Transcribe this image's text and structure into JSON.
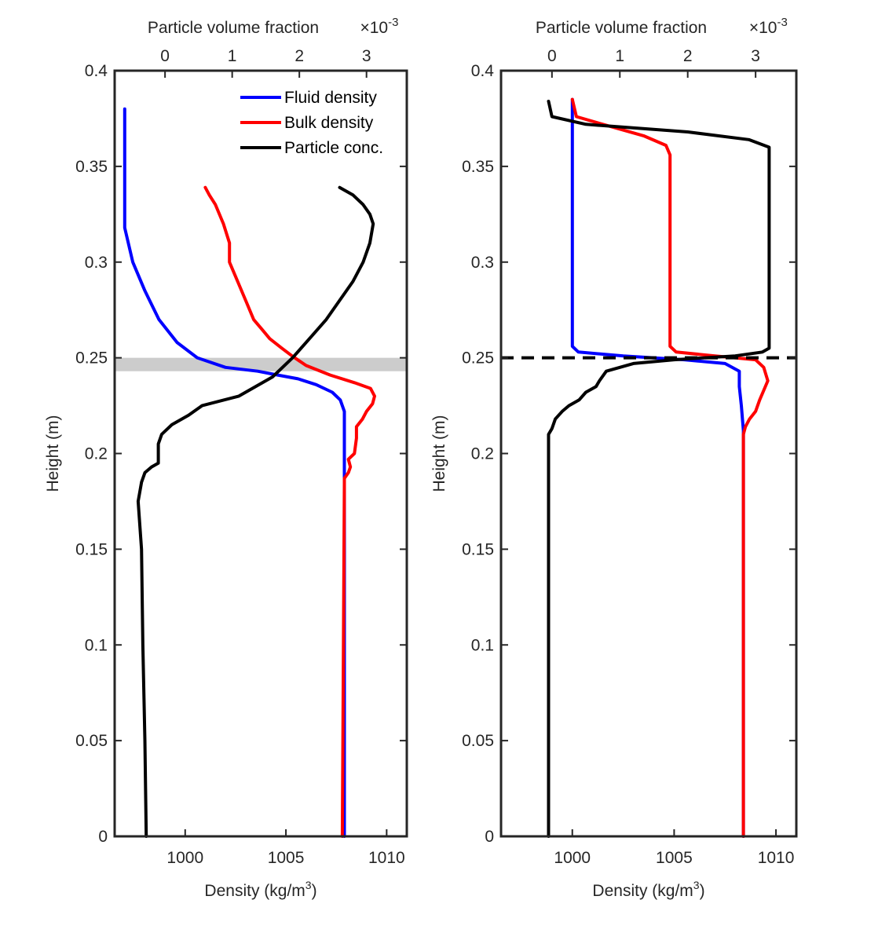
{
  "chart_data": [
    {
      "type": "line",
      "panel": "left",
      "xlabel_bottom": "Density (kg/m",
      "xlabel_bottom_sup": "3",
      "xlabel_bottom_end": ")",
      "xlabel_top": "Particle volume fraction",
      "xlabel_top_multiplier": "×10",
      "xlabel_top_multiplier_exp": "-3",
      "ylabel": "Height (m)",
      "xlim_bottom": [
        996.5,
        1011
      ],
      "xlim_top": [
        -0.75,
        3.6
      ],
      "ylim": [
        0,
        0.4
      ],
      "xticks_bottom": [
        "1000",
        "1005",
        "1010"
      ],
      "xticks_top": [
        "0",
        "1",
        "2",
        "3"
      ],
      "yticks": [
        "0",
        "0.05",
        "0.1",
        "0.15",
        "0.2",
        "0.25",
        "0.3",
        "0.35",
        "0.4"
      ],
      "band": {
        "y0": 0.243,
        "y1": 0.25,
        "color": "#cccccc"
      },
      "legend": {
        "location": "top-right",
        "entries": [
          {
            "label": "Fluid density",
            "color": "#0000ff"
          },
          {
            "label": "Bulk density",
            "color": "#ff0000"
          },
          {
            "label": "Particle conc.",
            "color": "#000000"
          }
        ]
      },
      "series": [
        {
          "name": "Fluid density",
          "axis": "bottom",
          "color": "#0000ff",
          "points": [
            [
              997,
              0.38
            ],
            [
              997,
              0.318
            ],
            [
              997.4,
              0.3
            ],
            [
              998,
              0.285
            ],
            [
              998.7,
              0.27
            ],
            [
              999.6,
              0.258
            ],
            [
              1000.6,
              0.25
            ],
            [
              1002,
              0.245
            ],
            [
              1003.6,
              0.243
            ],
            [
              1004.6,
              0.241
            ],
            [
              1005.6,
              0.239
            ],
            [
              1006.5,
              0.236
            ],
            [
              1007.3,
              0.232
            ],
            [
              1007.7,
              0.228
            ],
            [
              1007.9,
              0.222
            ],
            [
              1007.9,
              0.218
            ],
            [
              1007.9,
              0
            ]
          ]
        },
        {
          "name": "Bulk density",
          "axis": "bottom",
          "color": "#ff0000",
          "points": [
            [
              1001,
              0.339
            ],
            [
              1001.2,
              0.335
            ],
            [
              1001.5,
              0.33
            ],
            [
              1001.9,
              0.32
            ],
            [
              1002.2,
              0.31
            ],
            [
              1002.2,
              0.3
            ],
            [
              1002.6,
              0.29
            ],
            [
              1003,
              0.28
            ],
            [
              1003.4,
              0.27
            ],
            [
              1003.8,
              0.265
            ],
            [
              1004.2,
              0.26
            ],
            [
              1004.8,
              0.255
            ],
            [
              1005.3,
              0.251
            ],
            [
              1006,
              0.246
            ],
            [
              1007.2,
              0.241
            ],
            [
              1008.4,
              0.237
            ],
            [
              1009.2,
              0.234
            ],
            [
              1009.4,
              0.23
            ],
            [
              1009.3,
              0.226
            ],
            [
              1009,
              0.222
            ],
            [
              1008.8,
              0.218
            ],
            [
              1008.5,
              0.214
            ],
            [
              1008.5,
              0.208
            ],
            [
              1008.4,
              0.2
            ],
            [
              1008.1,
              0.197
            ],
            [
              1008.2,
              0.193
            ],
            [
              1008.1,
              0.19
            ],
            [
              1007.9,
              0.187
            ],
            [
              1007.9,
              0.184
            ],
            [
              1007.8,
              0
            ]
          ]
        },
        {
          "name": "Particle conc.",
          "axis": "top",
          "color": "#000000",
          "points": [
            [
              2.6,
              0.339
            ],
            [
              2.8,
              0.335
            ],
            [
              2.95,
              0.33
            ],
            [
              3.05,
              0.325
            ],
            [
              3.1,
              0.32
            ],
            [
              3.05,
              0.31
            ],
            [
              2.95,
              0.3
            ],
            [
              2.8,
              0.29
            ],
            [
              2.6,
              0.28
            ],
            [
              2.4,
              0.27
            ],
            [
              2.15,
              0.26
            ],
            [
              1.9,
              0.25
            ],
            [
              1.6,
              0.24
            ],
            [
              1.1,
              0.23
            ],
            [
              0.55,
              0.225
            ],
            [
              0.35,
              0.22
            ],
            [
              0.1,
              0.215
            ],
            [
              -0.05,
              0.21
            ],
            [
              -0.1,
              0.205
            ],
            [
              -0.1,
              0.195
            ],
            [
              -0.2,
              0.193
            ],
            [
              -0.3,
              0.19
            ],
            [
              -0.35,
              0.185
            ],
            [
              -0.4,
              0.175
            ],
            [
              -0.35,
              0.15
            ],
            [
              -0.33,
              0.1
            ],
            [
              -0.3,
              0.05
            ],
            [
              -0.28,
              0
            ]
          ]
        }
      ]
    },
    {
      "type": "line",
      "panel": "right",
      "xlabel_bottom": "Density (kg/m",
      "xlabel_bottom_sup": "3",
      "xlabel_bottom_end": ")",
      "xlabel_top": "Particle volume fraction",
      "xlabel_top_multiplier": "×10",
      "xlabel_top_multiplier_exp": "-3",
      "ylabel": "Height (m)",
      "xlim_bottom": [
        996.5,
        1011
      ],
      "xlim_top": [
        -0.75,
        3.6
      ],
      "ylim": [
        0,
        0.4
      ],
      "xticks_bottom": [
        "1000",
        "1005",
        "1010"
      ],
      "xticks_top": [
        "0",
        "1",
        "2",
        "3"
      ],
      "yticks": [
        "0",
        "0.05",
        "0.1",
        "0.15",
        "0.2",
        "0.25",
        "0.3",
        "0.35",
        "0.4"
      ],
      "dashed_line": {
        "y": 0.25,
        "color": "#000000"
      },
      "series": [
        {
          "name": "Fluid density",
          "axis": "bottom",
          "color": "#0000ff",
          "points": [
            [
              1000,
              0.385
            ],
            [
              1000,
              0.376
            ],
            [
              1000,
              0.256
            ],
            [
              1000.3,
              0.253
            ],
            [
              1002.5,
              0.251
            ],
            [
              1005.5,
              0.249
            ],
            [
              1007.5,
              0.247
            ],
            [
              1008.2,
              0.243
            ],
            [
              1008.2,
              0.235
            ],
            [
              1008.3,
              0.225
            ],
            [
              1008.4,
              0.212
            ],
            [
              1008.4,
              0
            ]
          ]
        },
        {
          "name": "Bulk density",
          "axis": "bottom",
          "color": "#ff0000",
          "points": [
            [
              1000,
              0.385
            ],
            [
              1000.2,
              0.376
            ],
            [
              1001.5,
              0.372
            ],
            [
              1003.5,
              0.366
            ],
            [
              1004.6,
              0.361
            ],
            [
              1004.8,
              0.356
            ],
            [
              1004.8,
              0.256
            ],
            [
              1005.1,
              0.253
            ],
            [
              1007,
              0.251
            ],
            [
              1009,
              0.249
            ],
            [
              1009.4,
              0.245
            ],
            [
              1009.6,
              0.238
            ],
            [
              1009.4,
              0.233
            ],
            [
              1009.2,
              0.228
            ],
            [
              1009,
              0.222
            ],
            [
              1008.7,
              0.218
            ],
            [
              1008.5,
              0.214
            ],
            [
              1008.4,
              0.21
            ],
            [
              1008.4,
              0
            ]
          ]
        },
        {
          "name": "Particle conc.",
          "axis": "top",
          "color": "#000000",
          "points": [
            [
              -0.05,
              0.384
            ],
            [
              0,
              0.376
            ],
            [
              0.5,
              0.372
            ],
            [
              2,
              0.368
            ],
            [
              2.9,
              0.364
            ],
            [
              3.2,
              0.36
            ],
            [
              3.2,
              0.355
            ],
            [
              3.2,
              0.255
            ],
            [
              3.1,
              0.253
            ],
            [
              2.7,
              0.251
            ],
            [
              1.8,
              0.249
            ],
            [
              1.2,
              0.247
            ],
            [
              1,
              0.245
            ],
            [
              0.8,
              0.243
            ],
            [
              0.7,
              0.238
            ],
            [
              0.65,
              0.235
            ],
            [
              0.5,
              0.232
            ],
            [
              0.4,
              0.228
            ],
            [
              0.25,
              0.225
            ],
            [
              0.15,
              0.222
            ],
            [
              0.05,
              0.218
            ],
            [
              0,
              0.213
            ],
            [
              -0.05,
              0.21
            ],
            [
              -0.05,
              0
            ]
          ]
        }
      ]
    }
  ]
}
